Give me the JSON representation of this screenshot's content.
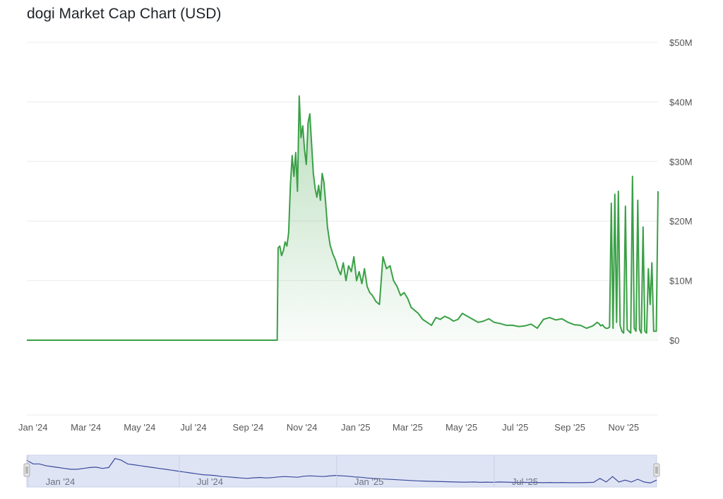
{
  "title": "dogi Market Cap Chart (USD)",
  "colors": {
    "line": "#3aa046",
    "area_top": "#3aa046",
    "grid": "#ececec",
    "navigator_fill": "#dfe4f5",
    "navigator_line": "#3b4a9a",
    "navigator_handle": "#e5e5e5"
  },
  "chart_data": {
    "type": "area",
    "series": [
      {
        "x": [
          "2023-12-25",
          "2024-01-15",
          "2024-02-15",
          "2024-03-15",
          "2024-04-15",
          "2024-05-15",
          "2024-06-15",
          "2024-07-15",
          "2024-08-15",
          "2024-09-15",
          "2024-10-04",
          "2024-10-05",
          "2024-10-07",
          "2024-10-09",
          "2024-10-11",
          "2024-10-13",
          "2024-10-15",
          "2024-10-17",
          "2024-10-19",
          "2024-10-21",
          "2024-10-23",
          "2024-10-25",
          "2024-10-27",
          "2024-10-29",
          "2024-10-31",
          "2024-11-02",
          "2024-11-04",
          "2024-11-06",
          "2024-11-08",
          "2024-11-10",
          "2024-11-12",
          "2024-11-14",
          "2024-11-16",
          "2024-11-18",
          "2024-11-20",
          "2024-11-22",
          "2024-11-24",
          "2024-11-26",
          "2024-11-28",
          "2024-11-30",
          "2024-12-03",
          "2024-12-06",
          "2024-12-09",
          "2024-12-12",
          "2024-12-15",
          "2024-12-18",
          "2024-12-21",
          "2024-12-24",
          "2024-12-27",
          "2024-12-30",
          "2025-01-02",
          "2025-01-05",
          "2025-01-08",
          "2025-01-11",
          "2025-01-14",
          "2025-01-17",
          "2025-01-20",
          "2025-01-24",
          "2025-01-28",
          "2025-02-01",
          "2025-02-05",
          "2025-02-09",
          "2025-02-13",
          "2025-02-17",
          "2025-02-21",
          "2025-02-25",
          "2025-03-01",
          "2025-03-05",
          "2025-03-09",
          "2025-03-13",
          "2025-03-18",
          "2025-03-23",
          "2025-03-28",
          "2025-04-02",
          "2025-04-07",
          "2025-04-12",
          "2025-04-17",
          "2025-04-22",
          "2025-04-27",
          "2025-05-02",
          "2025-05-08",
          "2025-05-14",
          "2025-05-20",
          "2025-05-26",
          "2025-06-01",
          "2025-06-07",
          "2025-06-14",
          "2025-06-21",
          "2025-06-28",
          "2025-07-05",
          "2025-07-12",
          "2025-07-19",
          "2025-07-26",
          "2025-08-02",
          "2025-08-09",
          "2025-08-16",
          "2025-08-23",
          "2025-08-30",
          "2025-09-06",
          "2025-09-13",
          "2025-09-20",
          "2025-09-27",
          "2025-10-02",
          "2025-10-04",
          "2025-10-06",
          "2025-10-08",
          "2025-10-10",
          "2025-10-12",
          "2025-10-14",
          "2025-10-16",
          "2025-10-18",
          "2025-10-20",
          "2025-10-22",
          "2025-10-24",
          "2025-10-26",
          "2025-10-28",
          "2025-10-30",
          "2025-11-01",
          "2025-11-03",
          "2025-11-05",
          "2025-11-07",
          "2025-11-09",
          "2025-11-11",
          "2025-11-13",
          "2025-11-15",
          "2025-11-17",
          "2025-11-19",
          "2025-11-21",
          "2025-11-23",
          "2025-11-25",
          "2025-11-27",
          "2025-11-29",
          "2025-12-01",
          "2025-12-03",
          "2025-12-05",
          "2025-12-08",
          "2025-12-10"
        ],
        "values": [
          0,
          0,
          0,
          0,
          0,
          0,
          0,
          0,
          0,
          0,
          0,
          15.5,
          15.8,
          14.2,
          15.0,
          16.5,
          15.8,
          18.0,
          26.0,
          31.0,
          27.5,
          31.5,
          25.0,
          41.0,
          34.0,
          36.0,
          32.0,
          29.5,
          36.5,
          38.0,
          33.0,
          28.0,
          25.5,
          24.0,
          26.0,
          23.5,
          28.0,
          26.5,
          23.0,
          19.0,
          16.0,
          14.5,
          13.5,
          12.0,
          11.0,
          13.0,
          10.0,
          12.5,
          11.5,
          14.0,
          10.0,
          11.5,
          9.5,
          12.0,
          9.0,
          8.0,
          7.5,
          6.5,
          6.0,
          14.0,
          12.0,
          12.5,
          10.0,
          9.0,
          7.5,
          8.0,
          7.0,
          5.5,
          5.0,
          4.5,
          3.5,
          3.0,
          2.5,
          3.8,
          3.5,
          4.0,
          3.7,
          3.2,
          3.5,
          4.5,
          4.0,
          3.5,
          3.0,
          3.2,
          3.6,
          3.0,
          2.8,
          2.5,
          2.5,
          2.3,
          2.4,
          2.7,
          2.0,
          3.5,
          3.8,
          3.4,
          3.6,
          3.0,
          2.6,
          2.5,
          2.0,
          2.4,
          3.0,
          2.8,
          2.4,
          2.6,
          2.2,
          2.0,
          2.0,
          2.2,
          23.0,
          2.0,
          24.5,
          3.0,
          25.0,
          2.5,
          1.5,
          1.2,
          22.5,
          1.8,
          1.5,
          1.2,
          27.5,
          2.0,
          1.5,
          23.5,
          1.8,
          1.2,
          19.0,
          1.5,
          1.2,
          12.0,
          6.0,
          13.0,
          1.5,
          1.5,
          25.0
        ]
      }
    ],
    "x_ticks": [
      "Jan '24",
      "Mar '24",
      "May '24",
      "Jul '24",
      "Sep '24",
      "Nov '24",
      "Jan '25",
      "Mar '25",
      "May '25",
      "Jul '25",
      "Sep '25",
      "Nov '25"
    ],
    "y_ticks": [
      "$0",
      "$10M",
      "$20M",
      "$30M",
      "$40M",
      "$50M"
    ],
    "ylim": [
      0,
      50
    ],
    "y_unit": "millions USD",
    "grid": true,
    "navigator": {
      "labels": [
        "Jan '24",
        "Jul '24",
        "Jan '25",
        "Jul '25"
      ],
      "values": [
        14,
        12,
        12,
        11,
        10.5,
        10,
        9.5,
        9,
        9,
        9.5,
        10,
        10.2,
        9.5,
        10,
        15,
        14,
        12,
        11.5,
        11,
        10.5,
        10,
        9.5,
        9,
        8.5,
        8,
        7.5,
        7,
        6.5,
        6,
        5.8,
        5.5,
        5,
        4.8,
        4.5,
        4.2,
        4,
        4.3,
        4.5,
        4.2,
        4.4,
        4.8,
        5,
        4.8,
        4.6,
        5.2,
        5.4,
        5.2,
        5,
        5.3,
        5.6,
        5.4,
        5.2,
        4.8,
        4.6,
        4.2,
        4,
        3.8,
        3.6,
        3.4,
        3.2,
        3,
        2.8,
        2.6,
        2.5,
        2.4,
        2.3,
        2.2,
        2.1,
        2,
        1.9,
        1.9,
        2,
        1.8,
        1.9,
        1.8,
        2,
        1.9,
        1.8,
        1.7,
        1.8,
        1.7,
        1.7,
        1.6,
        1.7,
        1.6,
        1.7,
        1.6,
        1.6,
        1.6,
        1.7,
        1.8,
        4,
        2,
        5,
        2,
        3,
        2,
        3.5,
        2,
        1.5,
        3
      ]
    }
  }
}
